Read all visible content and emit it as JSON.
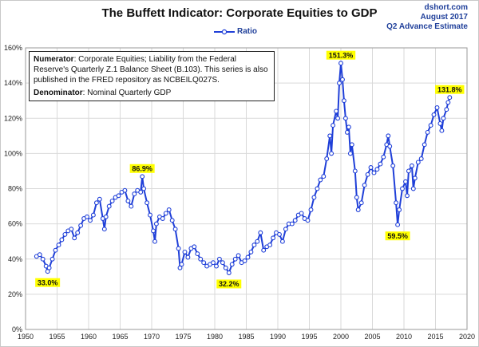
{
  "header": {
    "title": "The Buffett Indicator: Corporate Equities to GDP",
    "source_lines": [
      "dshort.com",
      "August 2017",
      "Q2 Advance Estimate"
    ]
  },
  "infobox": {
    "numerator_label": "Numerator",
    "numerator_text": ": Corporate Equities; Liability from the Federal Reserve's Quarterly Z.1 Balance Sheet (B.103). This series is also published in the FRED repository as NCBEILQ027S.",
    "denominator_label": "Denominator",
    "denominator_text": ": Nominal Quarterly GDP"
  },
  "colors": {
    "series": "#1f3fd8",
    "annotation_bg": "#ffff00",
    "grid": "#d9d9d9",
    "source_text": "#1f3f9a"
  },
  "chart_data": {
    "type": "line",
    "title": "The Buffett Indicator: Corporate Equities to GDP",
    "xlabel": "",
    "ylabel": "",
    "xlim": [
      1950,
      2020
    ],
    "ylim": [
      0,
      160
    ],
    "x_ticks": [
      "1950",
      "1955",
      "1960",
      "1965",
      "1970",
      "1975",
      "1980",
      "1985",
      "1990",
      "1995",
      "2000",
      "2005",
      "2010",
      "2015",
      "2020"
    ],
    "y_ticks": [
      "0%",
      "20%",
      "40%",
      "60%",
      "80%",
      "100%",
      "120%",
      "140%",
      "160%"
    ],
    "grid": true,
    "legend_position": "top-center",
    "series": [
      {
        "name": "Ratio",
        "points": [
          [
            1951.75,
            41.5
          ],
          [
            1952.25,
            42.5
          ],
          [
            1952.75,
            40.0
          ],
          [
            1953.25,
            36.0
          ],
          [
            1953.5,
            33.0
          ],
          [
            1953.75,
            35.0
          ],
          [
            1954.25,
            40.0
          ],
          [
            1954.75,
            45.0
          ],
          [
            1955.25,
            48.0
          ],
          [
            1955.75,
            51.0
          ],
          [
            1956.25,
            54.0
          ],
          [
            1956.75,
            56.0
          ],
          [
            1957.25,
            57.0
          ],
          [
            1957.75,
            52.0
          ],
          [
            1958.25,
            55.0
          ],
          [
            1958.75,
            59.0
          ],
          [
            1959.25,
            63.0
          ],
          [
            1959.75,
            64.0
          ],
          [
            1960.25,
            62.0
          ],
          [
            1960.75,
            65.0
          ],
          [
            1961.25,
            72.0
          ],
          [
            1961.75,
            74.0
          ],
          [
            1962.25,
            63.0
          ],
          [
            1962.5,
            57.0
          ],
          [
            1962.75,
            64.0
          ],
          [
            1963.25,
            70.0
          ],
          [
            1963.75,
            73.0
          ],
          [
            1964.25,
            75.0
          ],
          [
            1964.75,
            76.0
          ],
          [
            1965.25,
            78.0
          ],
          [
            1965.75,
            79.0
          ],
          [
            1966.25,
            73.0
          ],
          [
            1966.75,
            70.0
          ],
          [
            1967.25,
            77.0
          ],
          [
            1967.75,
            79.0
          ],
          [
            1968.25,
            78.0
          ],
          [
            1968.5,
            86.9
          ],
          [
            1968.75,
            80.0
          ],
          [
            1969.25,
            72.0
          ],
          [
            1969.75,
            65.0
          ],
          [
            1970.25,
            56.0
          ],
          [
            1970.5,
            50.0
          ],
          [
            1970.75,
            60.0
          ],
          [
            1971.25,
            64.0
          ],
          [
            1971.75,
            63.0
          ],
          [
            1972.25,
            66.0
          ],
          [
            1972.75,
            68.0
          ],
          [
            1973.25,
            62.0
          ],
          [
            1973.75,
            57.0
          ],
          [
            1974.25,
            46.0
          ],
          [
            1974.5,
            35.0
          ],
          [
            1974.75,
            37.0
          ],
          [
            1975.25,
            44.0
          ],
          [
            1975.75,
            41.0
          ],
          [
            1976.25,
            46.0
          ],
          [
            1976.75,
            47.0
          ],
          [
            1977.25,
            43.0
          ],
          [
            1977.75,
            40.0
          ],
          [
            1978.25,
            38.0
          ],
          [
            1978.75,
            36.0
          ],
          [
            1979.25,
            37.0
          ],
          [
            1979.75,
            38.0
          ],
          [
            1980.25,
            36.0
          ],
          [
            1980.75,
            40.0
          ],
          [
            1981.25,
            38.0
          ],
          [
            1981.75,
            35.0
          ],
          [
            1982.25,
            32.2
          ],
          [
            1982.75,
            37.0
          ],
          [
            1983.25,
            40.0
          ],
          [
            1983.75,
            42.0
          ],
          [
            1984.25,
            38.0
          ],
          [
            1984.75,
            39.0
          ],
          [
            1985.25,
            41.0
          ],
          [
            1985.75,
            44.0
          ],
          [
            1986.25,
            48.0
          ],
          [
            1986.75,
            50.0
          ],
          [
            1987.25,
            55.0
          ],
          [
            1987.75,
            45.0
          ],
          [
            1988.25,
            47.0
          ],
          [
            1988.75,
            48.0
          ],
          [
            1989.25,
            52.0
          ],
          [
            1989.75,
            55.0
          ],
          [
            1990.25,
            54.0
          ],
          [
            1990.75,
            50.0
          ],
          [
            1991.25,
            57.0
          ],
          [
            1991.75,
            60.0
          ],
          [
            1992.25,
            60.0
          ],
          [
            1992.75,
            62.0
          ],
          [
            1993.25,
            65.0
          ],
          [
            1993.75,
            66.0
          ],
          [
            1994.25,
            63.0
          ],
          [
            1994.75,
            62.0
          ],
          [
            1995.25,
            68.0
          ],
          [
            1995.75,
            75.0
          ],
          [
            1996.25,
            80.0
          ],
          [
            1996.75,
            85.0
          ],
          [
            1997.25,
            87.0
          ],
          [
            1997.75,
            97.0
          ],
          [
            1998.25,
            110.0
          ],
          [
            1998.5,
            100.0
          ],
          [
            1998.75,
            116.0
          ],
          [
            1999.25,
            124.0
          ],
          [
            1999.5,
            120.0
          ],
          [
            1999.75,
            140.0
          ],
          [
            2000.0,
            151.3
          ],
          [
            2000.25,
            142.0
          ],
          [
            2000.5,
            130.0
          ],
          [
            2000.75,
            120.0
          ],
          [
            2001.0,
            112.0
          ],
          [
            2001.25,
            115.0
          ],
          [
            2001.5,
            100.0
          ],
          [
            2001.75,
            105.0
          ],
          [
            2002.25,
            90.0
          ],
          [
            2002.5,
            75.0
          ],
          [
            2002.75,
            68.0
          ],
          [
            2003.25,
            72.0
          ],
          [
            2003.75,
            82.0
          ],
          [
            2004.25,
            88.0
          ],
          [
            2004.75,
            92.0
          ],
          [
            2005.25,
            89.0
          ],
          [
            2005.75,
            91.0
          ],
          [
            2006.25,
            94.0
          ],
          [
            2006.75,
            98.0
          ],
          [
            2007.25,
            105.0
          ],
          [
            2007.5,
            110.0
          ],
          [
            2007.75,
            104.0
          ],
          [
            2008.25,
            93.0
          ],
          [
            2008.75,
            72.0
          ],
          [
            2009.0,
            59.5
          ],
          [
            2009.25,
            68.0
          ],
          [
            2009.75,
            80.0
          ],
          [
            2010.25,
            84.0
          ],
          [
            2010.5,
            76.0
          ],
          [
            2010.75,
            90.0
          ],
          [
            2011.25,
            93.0
          ],
          [
            2011.5,
            80.0
          ],
          [
            2011.75,
            86.0
          ],
          [
            2012.25,
            95.0
          ],
          [
            2012.75,
            97.0
          ],
          [
            2013.25,
            105.0
          ],
          [
            2013.75,
            112.0
          ],
          [
            2014.25,
            116.0
          ],
          [
            2014.75,
            122.0
          ],
          [
            2015.25,
            126.0
          ],
          [
            2015.75,
            117.0
          ],
          [
            2016.0,
            113.0
          ],
          [
            2016.25,
            120.0
          ],
          [
            2016.75,
            125.0
          ],
          [
            2017.0,
            129.0
          ],
          [
            2017.25,
            131.8
          ]
        ]
      }
    ],
    "annotations": [
      {
        "label": "33.0%",
        "x": 1953.5,
        "y": 33.0,
        "placement": "below"
      },
      {
        "label": "86.9%",
        "x": 1968.5,
        "y": 86.9,
        "placement": "above"
      },
      {
        "label": "32.2%",
        "x": 1982.25,
        "y": 32.2,
        "placement": "below"
      },
      {
        "label": "151.3%",
        "x": 2000.0,
        "y": 151.3,
        "placement": "above"
      },
      {
        "label": "59.5%",
        "x": 2009.0,
        "y": 59.5,
        "placement": "below"
      },
      {
        "label": "131.8%",
        "x": 2017.25,
        "y": 131.8,
        "placement": "above"
      }
    ]
  }
}
